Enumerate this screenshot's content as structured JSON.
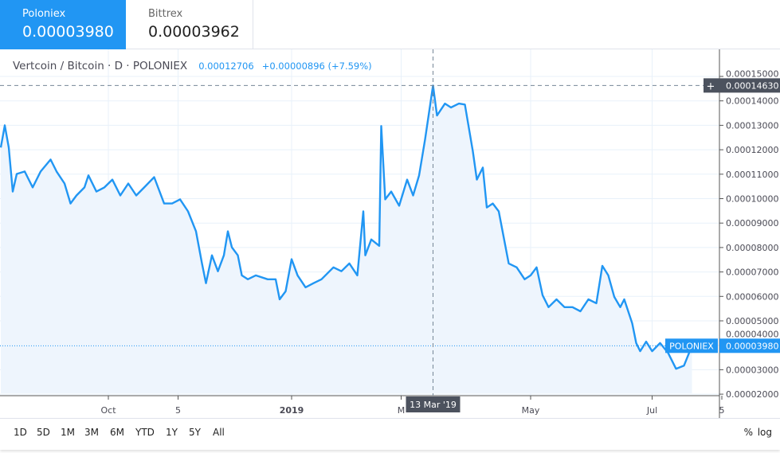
{
  "exchanges": [
    {
      "name": "Poloniex",
      "price": "0.00003980",
      "active": true
    },
    {
      "name": "Bittrex",
      "price": "0.00003962",
      "active": false
    }
  ],
  "legend": {
    "symbol": "Vertcoin / Bitcoin · D · POLONIEX",
    "value": "0.00012706",
    "change": "+0.00000896 (+7.59%)"
  },
  "crosshair": {
    "price": "0.00014630",
    "date": "13 Mar '19"
  },
  "last_price": {
    "label": "POLONIEX",
    "price": "0.00003980"
  },
  "ranges": [
    "1D",
    "5D",
    "1M",
    "3M",
    "6M",
    "YTD",
    "1Y",
    "5Y",
    "All"
  ],
  "toggles": {
    "percent": "%",
    "log": "log"
  },
  "colors": {
    "accent": "#2196f3",
    "line": "#2196f3",
    "area": "#eef5fd",
    "crosshair_label": "#4c525e"
  },
  "chart_data": {
    "type": "area",
    "x_ticks": [
      {
        "label": "Oct",
        "date": "2018-10-01"
      },
      {
        "label": "5",
        "date": "2018-11-05"
      },
      {
        "label": "2019",
        "date": "2019-01-01"
      },
      {
        "label": "M",
        "date": "2019-02-25"
      },
      {
        "label": "May",
        "date": "2019-05-01"
      },
      {
        "label": "Jul",
        "date": "2019-07-01"
      },
      {
        "label": "5",
        "date": "2019-08-05"
      }
    ],
    "y_ticks": [
      "0.00015000",
      "0.00014000",
      "0.00013000",
      "0.00012000",
      "0.00011000",
      "0.00010000",
      "0.00009000",
      "0.00008000",
      "0.00007000",
      "0.00006000",
      "0.00005000",
      "0.00004000",
      "0.00003000",
      "0.00002000"
    ],
    "ylim": [
      2e-05,
      0.00015
    ],
    "grid": true,
    "points": [
      [
        "2018-08-08",
        0.0001209
      ],
      [
        "2018-08-10",
        0.00013
      ],
      [
        "2018-08-12",
        0.0001209
      ],
      [
        "2018-08-14",
        0.0001029
      ],
      [
        "2018-08-16",
        0.0001101
      ],
      [
        "2018-08-20",
        0.0001111
      ],
      [
        "2018-08-24",
        0.0001046
      ],
      [
        "2018-08-28",
        0.0001111
      ],
      [
        "2018-09-02",
        0.000116
      ],
      [
        "2018-09-05",
        0.0001111
      ],
      [
        "2018-09-09",
        0.0001062
      ],
      [
        "2018-09-12",
        9.8e-05
      ],
      [
        "2018-09-15",
        0.0001013
      ],
      [
        "2018-09-19",
        0.0001046
      ],
      [
        "2018-09-21",
        0.0001095
      ],
      [
        "2018-09-25",
        0.0001029
      ],
      [
        "2018-09-29",
        0.0001046
      ],
      [
        "2018-10-03",
        0.0001078
      ],
      [
        "2018-10-07",
        0.0001013
      ],
      [
        "2018-10-11",
        0.0001062
      ],
      [
        "2018-10-15",
        0.0001013
      ],
      [
        "2018-10-19",
        0.0001046
      ],
      [
        "2018-10-24",
        0.0001088
      ],
      [
        "2018-10-29",
        9.8e-05
      ],
      [
        "2018-11-02",
        9.8e-05
      ],
      [
        "2018-11-06",
        9.97e-05
      ],
      [
        "2018-11-10",
        9.48e-05
      ],
      [
        "2018-11-14",
        8.66e-05
      ],
      [
        "2018-11-17",
        7.35e-05
      ],
      [
        "2018-11-19",
        6.54e-05
      ],
      [
        "2018-11-22",
        7.68e-05
      ],
      [
        "2018-11-25",
        7.03e-05
      ],
      [
        "2018-11-28",
        7.68e-05
      ],
      [
        "2018-11-30",
        8.66e-05
      ],
      [
        "2018-12-02",
        8.01e-05
      ],
      [
        "2018-12-05",
        7.68e-05
      ],
      [
        "2018-12-07",
        6.86e-05
      ],
      [
        "2018-12-10",
        6.7e-05
      ],
      [
        "2018-12-14",
        6.86e-05
      ],
      [
        "2018-12-20",
        6.7e-05
      ],
      [
        "2018-12-24",
        6.7e-05
      ],
      [
        "2018-12-26",
        5.88e-05
      ],
      [
        "2018-12-29",
        6.21e-05
      ],
      [
        "2019-01-01",
        7.52e-05
      ],
      [
        "2019-01-04",
        6.86e-05
      ],
      [
        "2019-01-08",
        6.37e-05
      ],
      [
        "2019-01-12",
        6.54e-05
      ],
      [
        "2019-01-16",
        6.7e-05
      ],
      [
        "2019-01-22",
        7.19e-05
      ],
      [
        "2019-01-26",
        7.03e-05
      ],
      [
        "2019-01-30",
        7.35e-05
      ],
      [
        "2019-02-03",
        6.86e-05
      ],
      [
        "2019-02-06",
        9.48e-05
      ],
      [
        "2019-02-07",
        7.68e-05
      ],
      [
        "2019-02-10",
        8.33e-05
      ],
      [
        "2019-02-14",
        8.07e-05
      ],
      [
        "2019-02-15",
        0.0001297
      ],
      [
        "2019-02-17",
        9.97e-05
      ],
      [
        "2019-02-20",
        0.0001029
      ],
      [
        "2019-02-24",
        9.71e-05
      ],
      [
        "2019-02-28",
        0.0001078
      ],
      [
        "2019-03-03",
        0.0001013
      ],
      [
        "2019-03-06",
        0.0001095
      ],
      [
        "2019-03-09",
        0.0001242
      ],
      [
        "2019-03-13",
        0.0001463
      ],
      [
        "2019-03-15",
        0.000134
      ],
      [
        "2019-03-19",
        0.0001389
      ],
      [
        "2019-03-22",
        0.0001373
      ],
      [
        "2019-03-26",
        0.0001389
      ],
      [
        "2019-03-29",
        0.0001385
      ],
      [
        "2019-04-02",
        0.0001193
      ],
      [
        "2019-04-04",
        0.0001078
      ],
      [
        "2019-04-07",
        0.0001127
      ],
      [
        "2019-04-09",
        9.64e-05
      ],
      [
        "2019-04-12",
        9.8e-05
      ],
      [
        "2019-04-15",
        9.48e-05
      ],
      [
        "2019-04-20",
        7.35e-05
      ],
      [
        "2019-04-24",
        7.19e-05
      ],
      [
        "2019-04-28",
        6.7e-05
      ],
      [
        "2019-05-01",
        6.86e-05
      ],
      [
        "2019-05-04",
        7.19e-05
      ],
      [
        "2019-05-07",
        6.05e-05
      ],
      [
        "2019-05-10",
        5.56e-05
      ],
      [
        "2019-05-14",
        5.88e-05
      ],
      [
        "2019-05-18",
        5.56e-05
      ],
      [
        "2019-05-22",
        5.56e-05
      ],
      [
        "2019-05-26",
        5.39e-05
      ],
      [
        "2019-05-30",
        5.88e-05
      ],
      [
        "2019-06-03",
        5.72e-05
      ],
      [
        "2019-06-06",
        7.25e-05
      ],
      [
        "2019-06-09",
        6.86e-05
      ],
      [
        "2019-06-12",
        5.98e-05
      ],
      [
        "2019-06-15",
        5.56e-05
      ],
      [
        "2019-06-17",
        5.88e-05
      ],
      [
        "2019-06-21",
        4.9e-05
      ],
      [
        "2019-06-23",
        4.09e-05
      ],
      [
        "2019-06-25",
        3.76e-05
      ],
      [
        "2019-06-28",
        4.15e-05
      ],
      [
        "2019-07-01",
        3.76e-05
      ],
      [
        "2019-07-05",
        4.09e-05
      ],
      [
        "2019-07-09",
        3.69e-05
      ],
      [
        "2019-07-13",
        3.04e-05
      ],
      [
        "2019-07-17",
        3.17e-05
      ],
      [
        "2019-07-21",
        3.98e-05
      ]
    ]
  }
}
